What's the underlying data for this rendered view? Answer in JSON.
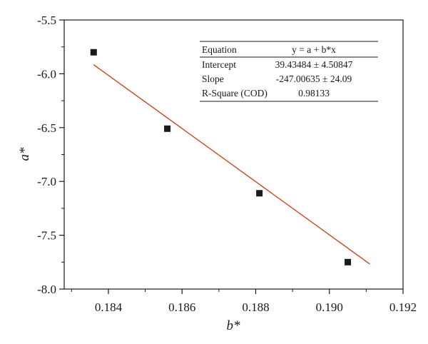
{
  "chart_data": {
    "type": "scatter",
    "xlabel": "b*",
    "ylabel": "a*",
    "xlim": [
      0.1828,
      0.192
    ],
    "ylim": [
      -8.0,
      -5.5
    ],
    "x_ticks": [
      0.184,
      0.186,
      0.188,
      0.19,
      0.192
    ],
    "x_tick_labels": [
      "0.184",
      "0.186",
      "0.188",
      "0.190",
      "0.192"
    ],
    "y_ticks": [
      -8.0,
      -7.5,
      -7.0,
      -6.5,
      -6.0,
      -5.5
    ],
    "y_tick_labels": [
      "-8.0",
      "-7.5",
      "-7.0",
      "-6.5",
      "-6.0",
      "-5.5"
    ],
    "grid": false,
    "series": [
      {
        "marker": "square",
        "color": "#1a1a1a",
        "points": [
          {
            "x": 0.1836,
            "y": -5.8
          },
          {
            "x": 0.1856,
            "y": -6.51
          },
          {
            "x": 0.1881,
            "y": -7.11
          },
          {
            "x": 0.1905,
            "y": -7.75
          }
        ]
      }
    ],
    "fit_line": {
      "color": "#c8471c",
      "intercept": 39.43484,
      "slope": -247.00635,
      "x_range": [
        0.1836,
        0.1911
      ]
    },
    "stats_table": {
      "placement": "top-right",
      "rows": [
        [
          "Equation",
          "y = a + b*x"
        ],
        [
          "Intercept",
          "39.43484 ± 4.50847"
        ],
        [
          "Slope",
          "-247.00635 ± 24.09"
        ],
        [
          "R-Square (COD)",
          "0.98133"
        ]
      ]
    }
  }
}
